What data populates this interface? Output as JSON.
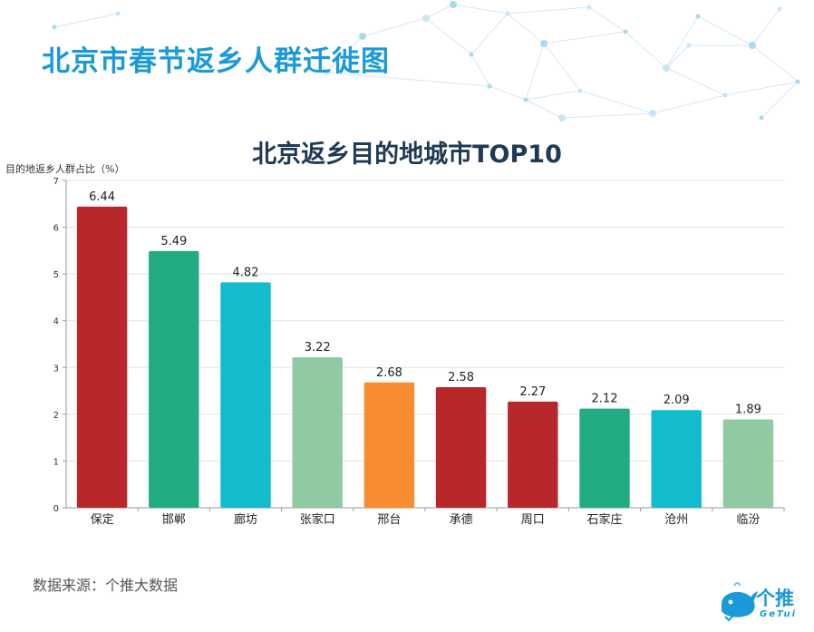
{
  "page": {
    "title": "北京市春节返乡人群迁徙图",
    "source_note": "数据来源：个推大数据"
  },
  "logo": {
    "name": "个推",
    "subtitle": "GeTui"
  },
  "colors": {
    "title": "#1a9ad8",
    "chart_title": "#1f3a55",
    "red": "#b8282b",
    "green": "#23ac84",
    "cyan": "#13bccc",
    "light_green": "#8fcaa2",
    "orange": "#f78c32"
  },
  "chart_data": {
    "type": "bar",
    "title": "北京返乡目的地城市TOP10",
    "ylabel": "目的地返乡人群占比（%）",
    "xlabel": "",
    "categories": [
      "保定",
      "邯郸",
      "廊坊",
      "张家口",
      "邢台",
      "承德",
      "周口",
      "石家庄",
      "沧州",
      "临汾"
    ],
    "values": [
      6.44,
      5.49,
      4.82,
      3.22,
      2.68,
      2.58,
      2.27,
      2.12,
      2.09,
      1.89
    ],
    "bar_colors": [
      "#b8282b",
      "#23ac84",
      "#13bccc",
      "#8fcaa2",
      "#f78c32",
      "#b8282b",
      "#b8282b",
      "#23ac84",
      "#13bccc",
      "#8fcaa2"
    ],
    "ylim": [
      0,
      7
    ],
    "yticks": [
      0,
      1,
      2,
      3,
      4,
      5,
      6,
      7
    ],
    "grid": true,
    "legend": "none"
  }
}
